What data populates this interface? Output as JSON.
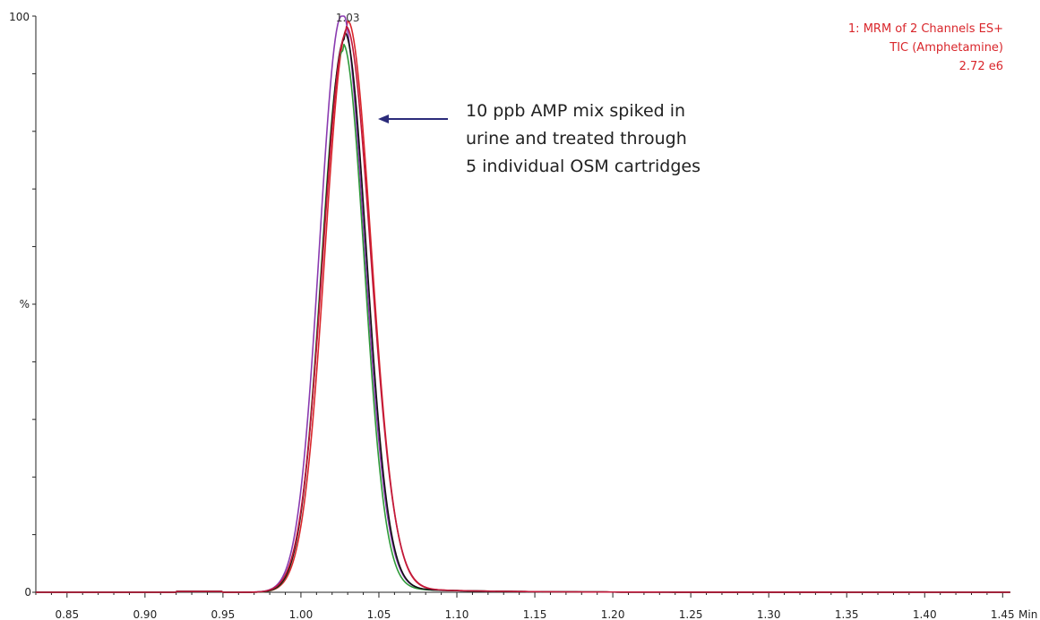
{
  "chart_data": {
    "type": "line",
    "xlim": [
      0.83,
      1.455
    ],
    "ylim": [
      0,
      100
    ],
    "x_ticks": [
      "0.85",
      "0.90",
      "0.95",
      "1.00",
      "1.05",
      "1.10",
      "1.15",
      "1.20",
      "1.25",
      "1.30",
      "1.35",
      "1.40",
      "1.45"
    ],
    "x_tick_values": [
      0.85,
      0.9,
      0.95,
      1.0,
      1.05,
      1.1,
      1.15,
      1.2,
      1.25,
      1.3,
      1.35,
      1.4,
      1.45
    ],
    "x_unit": "Min",
    "y_top_label": "100",
    "y_mid_label": "%",
    "y_bottom_label": "0",
    "peak_label": "1.03",
    "peak_label_x": 1.03,
    "info_lines": [
      "1: MRM of 2 Channels ES+",
      "TIC (Amphetamine)",
      "2.72 e6"
    ],
    "annotation_lines": [
      "10 ppb AMP mix spiked in",
      "urine and treated through",
      "5 individual OSM cartridges"
    ],
    "arrow_color": "#2b2b7a",
    "series": [
      {
        "color": "#d9262b",
        "peak_x": 1.03,
        "peak_y": 98,
        "sigma_left": 0.0145,
        "sigma_right": 0.015
      },
      {
        "color": "#8a3bb0",
        "peak_x": 1.026,
        "peak_y": 100,
        "sigma_left": 0.014,
        "sigma_right": 0.0145
      },
      {
        "color": "#2f9a3a",
        "peak_x": 1.027,
        "peak_y": 94,
        "sigma_left": 0.0138,
        "sigma_right": 0.0135
      },
      {
        "color": "#111111",
        "peak_x": 1.028,
        "peak_y": 96,
        "sigma_left": 0.0142,
        "sigma_right": 0.014
      },
      {
        "color": "#c0183a",
        "peak_x": 1.029,
        "peak_y": 97,
        "sigma_left": 0.0148,
        "sigma_right": 0.0155
      }
    ]
  }
}
